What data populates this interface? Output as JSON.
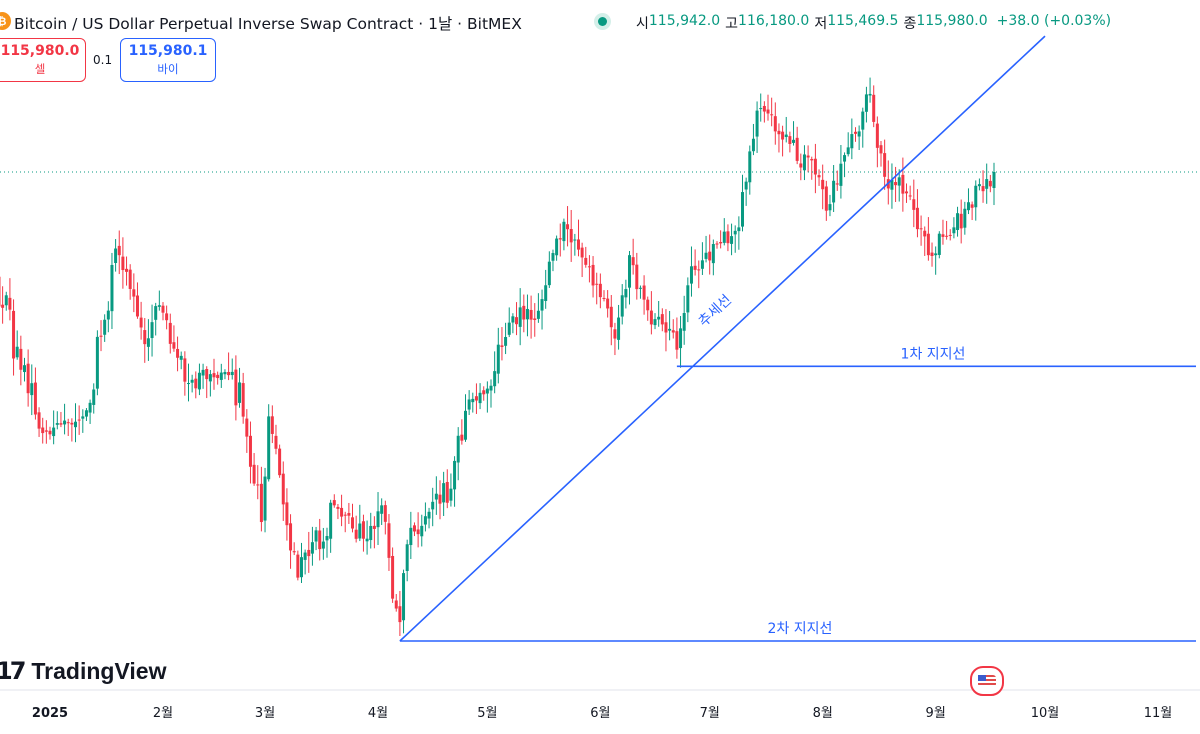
{
  "header": {
    "symbol_title": "Bitcoin / US Dollar Perpetual Inverse Swap Contract · 1날 · BitMEX",
    "coin_icon": "bitcoin-icon",
    "open_label": "시",
    "open_value": "115,942.0",
    "high_label": "고",
    "high_value": "116,180.0",
    "low_label": "저",
    "low_value": "115,469.5",
    "close_label": "종",
    "close_value": "115,980.0",
    "change": "+38.0 (+0.03%)"
  },
  "trade": {
    "sell_price": "115,980.0",
    "sell_label": "셀",
    "spread": "0.1",
    "buy_price": "115,980.1",
    "buy_label": "바이"
  },
  "branding": {
    "logo_text": "TradingView",
    "flag_icon": "us-flag-icon"
  },
  "colors": {
    "up": "#089981",
    "down": "#f23645",
    "drawing": "#2962ff",
    "price_line": "#089981"
  },
  "chart_data": {
    "type": "candlestick",
    "timeframe": "1 day",
    "x_ticks": [
      "2025",
      "2월",
      "3월",
      "4월",
      "5월",
      "6월",
      "7월",
      "8월",
      "9월",
      "10월",
      "11월"
    ],
    "x_range": [
      "2024-12-01",
      "2025-11-30"
    ],
    "y_range": [
      72000,
      127000
    ],
    "last_price": 115980.0,
    "anchors": [
      [
        "2024-12-01",
        98000
      ],
      [
        "2024-12-17",
        106500
      ],
      [
        "2024-12-30",
        92500
      ],
      [
        "2025-01-10",
        94000
      ],
      [
        "2025-01-20",
        108500
      ],
      [
        "2025-01-22",
        107000
      ],
      [
        "2025-01-27",
        100500
      ],
      [
        "2025-01-31",
        104000
      ],
      [
        "2025-02-08",
        97000
      ],
      [
        "2025-02-20",
        98000
      ],
      [
        "2025-02-28",
        84500
      ],
      [
        "2025-03-02",
        94000
      ],
      [
        "2025-03-10",
        79500
      ],
      [
        "2025-03-20",
        86000
      ],
      [
        "2025-03-28",
        83000
      ],
      [
        "2025-04-02",
        86000
      ],
      [
        "2025-04-07",
        75500
      ],
      [
        "2025-04-09",
        82500
      ],
      [
        "2025-04-21",
        87500
      ],
      [
        "2025-04-25",
        94500
      ],
      [
        "2025-05-01",
        96500
      ],
      [
        "2025-05-08",
        103000
      ],
      [
        "2025-05-15",
        103500
      ],
      [
        "2025-05-22",
        111500
      ],
      [
        "2025-05-26",
        109000
      ],
      [
        "2025-06-05",
        101000
      ],
      [
        "2025-06-09",
        108500
      ],
      [
        "2025-06-13",
        104500
      ],
      [
        "2025-06-22",
        100000
      ],
      [
        "2025-06-26",
        107500
      ],
      [
        "2025-07-03",
        109500
      ],
      [
        "2025-07-09",
        111000
      ],
      [
        "2025-07-14",
        121500
      ],
      [
        "2025-07-23",
        118500
      ],
      [
        "2025-07-31",
        115500
      ],
      [
        "2025-08-02",
        112500
      ],
      [
        "2025-08-07",
        117500
      ],
      [
        "2025-08-14",
        123000
      ],
      [
        "2025-08-19",
        114500
      ],
      [
        "2025-08-22",
        115500
      ],
      [
        "2025-08-30",
        108500
      ],
      [
        "2025-09-06",
        111000
      ],
      [
        "2025-09-17",
        115980
      ]
    ],
    "annotations": [
      {
        "type": "trend-line",
        "label": "추세선",
        "from": [
          "2025-04-07",
          73800
        ],
        "to": [
          "2025-10-01",
          128200
        ]
      },
      {
        "type": "horizontal-ray",
        "label": "1차 지지선",
        "from": [
          "2025-06-22",
          98500
        ]
      },
      {
        "type": "horizontal-ray",
        "label": "2차 지지선",
        "from": [
          "2025-04-07",
          73800
        ]
      }
    ]
  }
}
